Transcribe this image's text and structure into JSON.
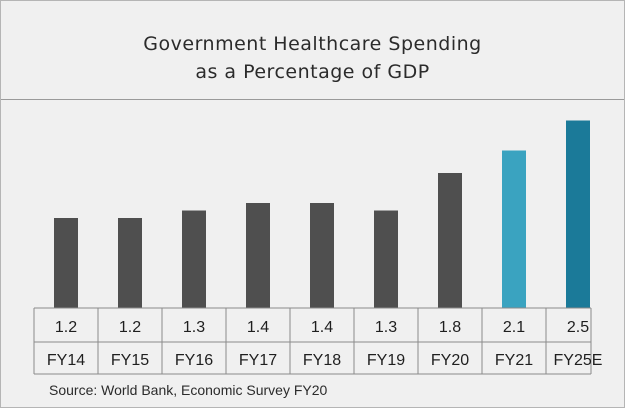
{
  "chart_data": {
    "type": "bar",
    "title": "Government Healthcare Spending",
    "subtitle": "as a Percentage of GDP",
    "categories": [
      "FY14",
      "FY15",
      "FY16",
      "FY17",
      "FY18",
      "FY19",
      "FY20",
      "FY21",
      "FY25E"
    ],
    "values": [
      1.2,
      1.2,
      1.3,
      1.4,
      1.4,
      1.3,
      1.8,
      2.1,
      2.5
    ],
    "value_labels": [
      "1.2",
      "1.2",
      "1.3",
      "1.4",
      "1.4",
      "1.3",
      "1.8",
      "2.1",
      "2.5"
    ],
    "bar_colors": [
      "#4f4f4f",
      "#4f4f4f",
      "#4f4f4f",
      "#4f4f4f",
      "#4f4f4f",
      "#4f4f4f",
      "#4f4f4f",
      "#3aa3c0",
      "#1b7a99"
    ],
    "xlabel": "",
    "ylabel": "",
    "ylim": [
      0,
      2.6
    ],
    "grid": false,
    "legend": "none",
    "source": "Source: World Bank, Economic Survey FY20"
  }
}
